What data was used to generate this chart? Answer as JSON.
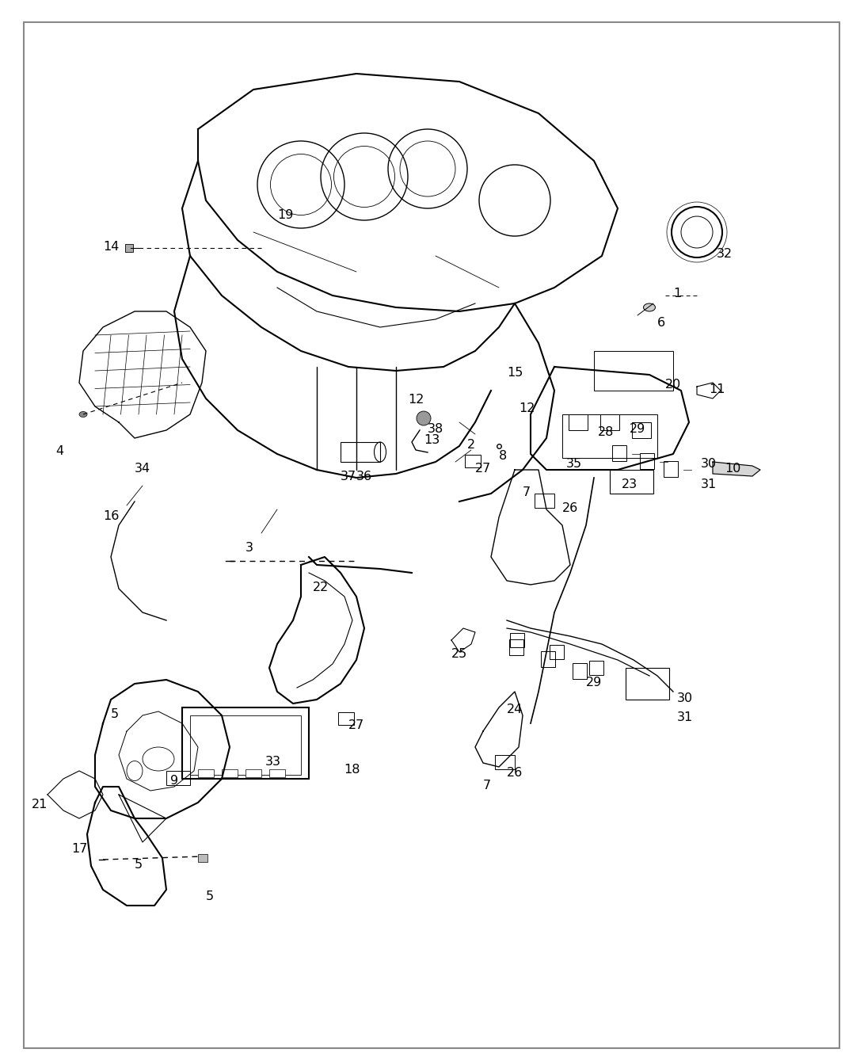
{
  "bg_color": "#ffffff",
  "line_color": "#000000",
  "fig_width": 10.91,
  "fig_height": 13.43,
  "dpi": 100,
  "label_data": [
    [
      "1",
      8.55,
      9.72
    ],
    [
      "2",
      5.95,
      7.82
    ],
    [
      "3",
      3.15,
      6.52
    ],
    [
      "4",
      0.75,
      7.73
    ],
    [
      "5",
      1.45,
      4.42
    ],
    [
      "5",
      2.65,
      2.12
    ],
    [
      "5",
      1.75,
      2.52
    ],
    [
      "6",
      8.35,
      9.35
    ],
    [
      "7",
      6.65,
      7.22
    ],
    [
      "7",
      6.15,
      3.52
    ],
    [
      "8",
      6.35,
      7.68
    ],
    [
      "9",
      2.2,
      3.58
    ],
    [
      "10",
      9.25,
      7.52
    ],
    [
      "11",
      9.05,
      8.52
    ],
    [
      "12",
      5.25,
      8.38
    ],
    [
      "12",
      6.65,
      8.28
    ],
    [
      "13",
      5.45,
      7.88
    ],
    [
      "14",
      1.4,
      10.32
    ],
    [
      "15",
      6.5,
      8.72
    ],
    [
      "16",
      1.4,
      6.92
    ],
    [
      "17",
      1.0,
      2.72
    ],
    [
      "18",
      4.45,
      3.72
    ],
    [
      "19",
      3.6,
      10.72
    ],
    [
      "20",
      8.5,
      8.58
    ],
    [
      "21",
      0.5,
      3.28
    ],
    [
      "22",
      4.05,
      6.02
    ],
    [
      "23",
      7.95,
      7.32
    ],
    [
      "24",
      6.5,
      4.48
    ],
    [
      "25",
      5.8,
      5.18
    ],
    [
      "26",
      7.2,
      7.02
    ],
    [
      "26",
      6.5,
      3.68
    ],
    [
      "27",
      6.1,
      7.52
    ],
    [
      "27",
      4.5,
      4.28
    ],
    [
      "28",
      7.65,
      7.98
    ],
    [
      "29",
      8.05,
      8.02
    ],
    [
      "29",
      7.5,
      4.82
    ],
    [
      "30",
      8.95,
      7.58
    ],
    [
      "30",
      8.65,
      4.62
    ],
    [
      "31",
      8.95,
      7.32
    ],
    [
      "31",
      8.65,
      4.38
    ],
    [
      "32",
      9.15,
      10.22
    ],
    [
      "33",
      3.45,
      3.82
    ],
    [
      "34",
      1.8,
      7.52
    ],
    [
      "35",
      7.25,
      7.58
    ],
    [
      "36",
      4.6,
      7.42
    ],
    [
      "37",
      4.4,
      7.42
    ],
    [
      "38",
      5.5,
      8.02
    ]
  ]
}
